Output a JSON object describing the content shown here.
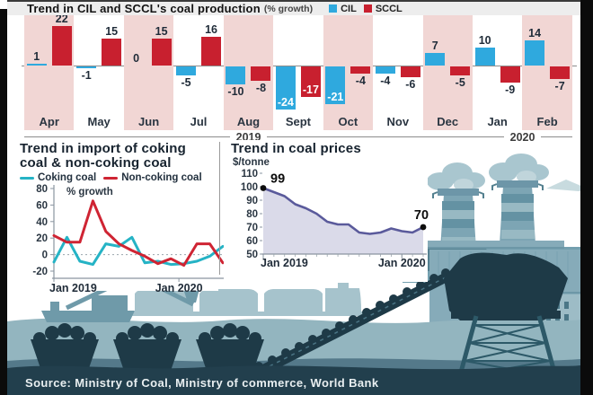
{
  "page": {
    "title": "Trend in CIL and SCCL's coal production",
    "title_suffix": "(% growth)",
    "source": "Source: Ministry of Coal, Ministry of commerce, World Bank"
  },
  "colors": {
    "cil_blue": "#2fa9de",
    "sccl_red": "#c8202f",
    "pink_stripe": "#f1d6d4",
    "coking_cyan": "#25b3c5",
    "non_coking_red": "#cf2433",
    "price_line_purple": "#5a5a9b",
    "price_fill_lavender": "#dadae9",
    "illustration_teal": "#86abb9",
    "coal_dark_navy": "#1e3a47"
  },
  "import_chart": {
    "title_line1": "Trend in import of coking",
    "title_line2": "coal & non-coking coal"
  },
  "price_chart": {
    "title": "Trend in coal prices",
    "ylabel": "$/tonne"
  },
  "chart_data": [
    {
      "type": "bar",
      "title": "Trend in CIL and SCCL's coal production (% growth)",
      "categories": [
        "Apr",
        "May",
        "Jun",
        "Jul",
        "Aug",
        "Sept",
        "Oct",
        "Nov",
        "Dec",
        "Jan",
        "Feb"
      ],
      "series": [
        {
          "name": "CIL",
          "color": "#2fa9de",
          "values": [
            1,
            -1,
            0,
            -5,
            -10,
            -24,
            -21,
            -4,
            7,
            10,
            14
          ]
        },
        {
          "name": "SCCL",
          "color": "#c8202f",
          "values": [
            22,
            15,
            15,
            16,
            -8,
            -17,
            -4,
            -6,
            -5,
            -9,
            -7
          ]
        }
      ],
      "year_groups": [
        {
          "label": "2019",
          "months_spanned": 9
        },
        {
          "label": "2020",
          "months_spanned": 2
        }
      ],
      "ylim": [
        -26,
        24
      ],
      "legend_position": "top-right"
    },
    {
      "type": "line",
      "title": "Trend in import of coking coal & non-coking coal",
      "ylabel": "% growth",
      "yticks": [
        80,
        60,
        40,
        20,
        0,
        -20
      ],
      "ylim": [
        -25,
        80
      ],
      "x_labels": [
        "Jan 2019",
        "Jan 2020"
      ],
      "series": [
        {
          "name": "Coking coal",
          "color": "#25b3c5",
          "values": [
            -9,
            21,
            -8,
            -12,
            13,
            10,
            21,
            -10,
            -8,
            -12,
            -11,
            -8,
            -2,
            10
          ]
        },
        {
          "name": "Non-coking coal",
          "color": "#cf2433",
          "values": [
            23,
            15,
            15,
            65,
            28,
            13,
            5,
            -2,
            -11,
            -5,
            -13,
            13,
            13,
            -10
          ]
        }
      ],
      "zero_gridline": "dotted"
    },
    {
      "type": "area",
      "title": "Trend in coal prices",
      "ylabel": "$/tonne",
      "yticks": [
        110,
        100,
        90,
        80,
        70,
        60,
        50
      ],
      "ylim": [
        50,
        110
      ],
      "x_labels": [
        "Jan 2019",
        "Jan 2020"
      ],
      "values": [
        99,
        96,
        93,
        87,
        84,
        80,
        74,
        72,
        72,
        66,
        65,
        66,
        69,
        67,
        66,
        70
      ],
      "first_point_label": "99",
      "last_point_label": "70",
      "line_color": "#5a5a9b",
      "fill_color": "#dadae9"
    }
  ]
}
